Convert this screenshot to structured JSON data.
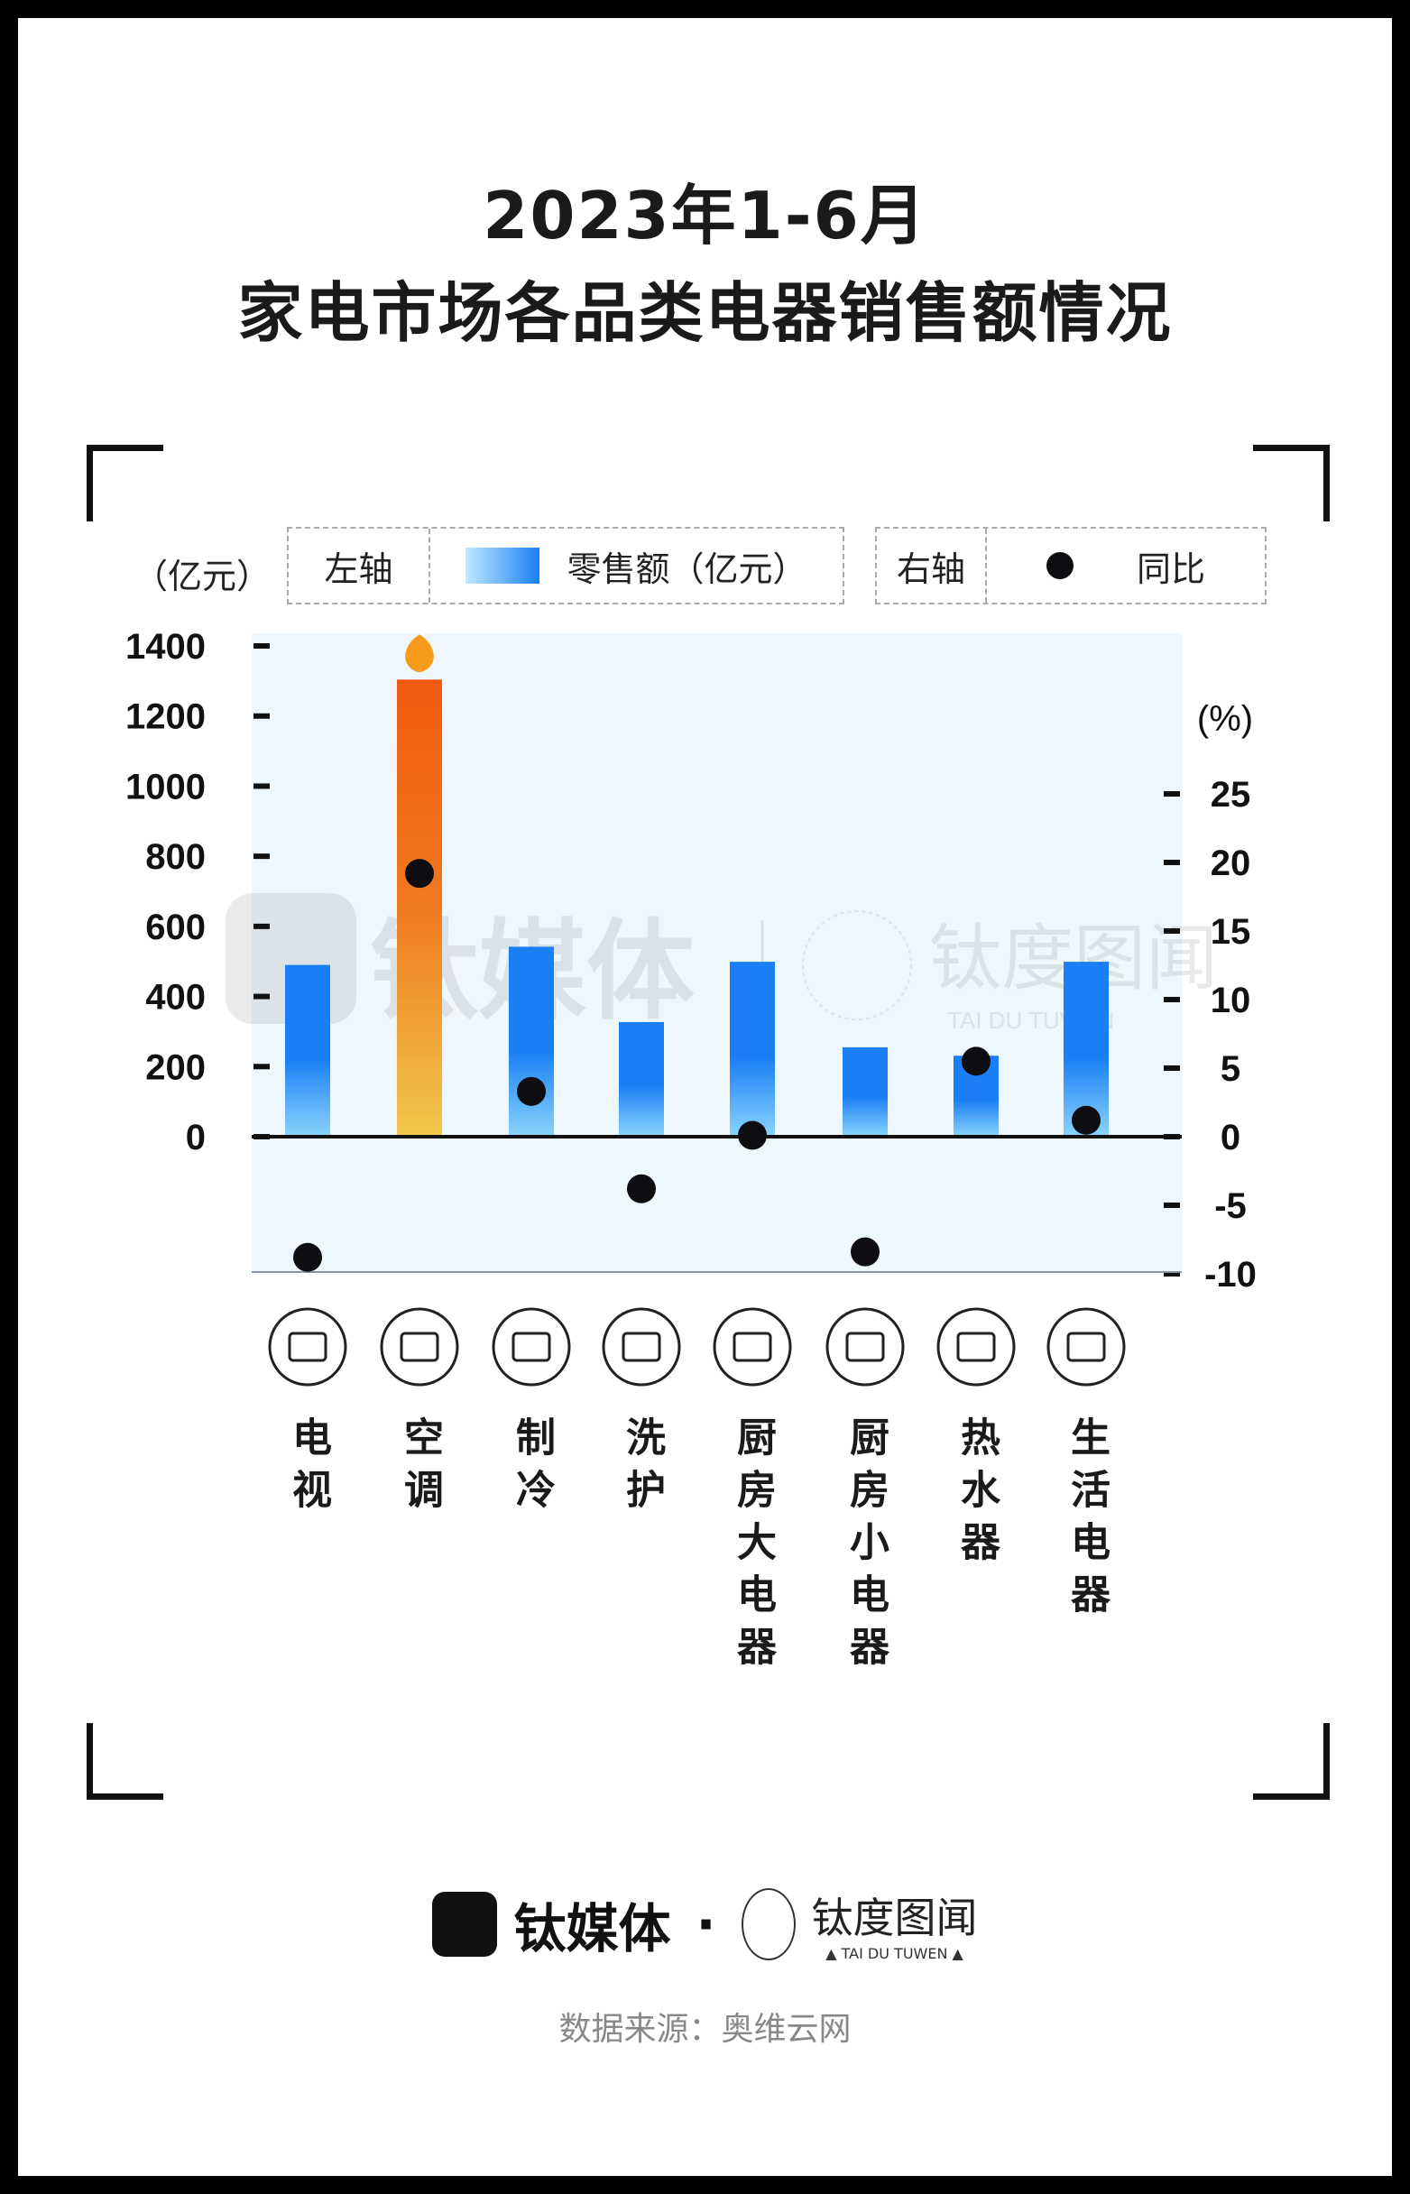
{
  "title": {
    "line1": "2023年1-6月",
    "line2": "家电市场各品类电器销售额情况"
  },
  "legend": {
    "left_axis_label": "左轴",
    "bar_series_label": "零售额（亿元）",
    "right_axis_label": "右轴",
    "dot_series_label": "同比"
  },
  "watermark": {
    "brand": "钛媒体",
    "sub_brand": "钛度图闻",
    "sub_brand_en": "TAI DU TUWEN"
  },
  "chart_data": {
    "type": "bar",
    "title": "2023年1-6月 家电市场各品类电器销售额情况",
    "categories": [
      "电视",
      "空调",
      "制冷",
      "洗护",
      "厨房大电器",
      "厨房小电器",
      "热水器",
      "生活电器"
    ],
    "series": [
      {
        "name": "零售额（亿元）",
        "type": "bar",
        "axis": "left",
        "values": [
          490,
          1304,
          542,
          327,
          499,
          255,
          231,
          499
        ]
      },
      {
        "name": "同比",
        "type": "scatter",
        "axis": "right",
        "values": [
          -8.8,
          19.2,
          3.3,
          -3.8,
          0.1,
          -8.4,
          5.5,
          1.2
        ]
      }
    ],
    "left_axis": {
      "unit_label": "（亿元）",
      "ticks": [
        0,
        200,
        400,
        600,
        800,
        1000,
        1200,
        1400
      ],
      "range": [
        0,
        1400
      ]
    },
    "right_axis": {
      "unit_label": "(%)",
      "ticks": [
        -10,
        -5,
        0,
        5,
        10,
        15,
        20,
        25
      ],
      "range": [
        -10,
        25
      ]
    },
    "highlight_category": "空调",
    "colors": {
      "bar_top": "#1a7ff5",
      "bar_bottom": "#8ad4fc",
      "highlight_top": "#f05a10",
      "highlight_bottom": "#f0c84a",
      "dot": "#0d0d12",
      "plot_bg": "#eef7fd"
    },
    "category_icons": [
      "tv-icon",
      "air-conditioner-icon",
      "snowflake-icon",
      "washing-machine-icon",
      "range-hood-icon",
      "microwave-icon",
      "water-heater-icon",
      "fan-icon"
    ]
  },
  "footer": {
    "brand": "钛媒体",
    "dot": "·",
    "sub_brand": "钛度图闻",
    "sub_brand_en": "▲ TAI DU TUWEN ▲",
    "source": "数据来源：奥维云网"
  }
}
